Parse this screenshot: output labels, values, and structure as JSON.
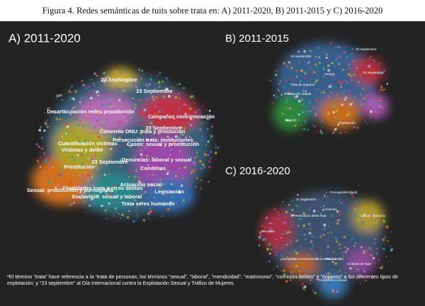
{
  "title": "Figura 4. Redes semánticas de tuits sobre trata en: A) 2011-2020, B) 2011-2015 y C) 2016-2020",
  "panels": [
    {
      "heading": "A) 2011-2020",
      "labels": [
        "23 Septiembre",
        "23 Septiembre",
        "Desarticulación redes prostitución",
        "Campañas concienciación",
        "23 Septiembre",
        "Convenio ONU: trata y prostución",
        "Cuantificación víctimas",
        "Persecución trata: instituciones",
        "Casos: sexual y prostitución",
        "Víctimas y delito",
        "Denuncias: laboral y sexual",
        "23 Septiembre",
        "Prostitución",
        "Condenas",
        "Actuación social",
        "Finalidades trata y otros delitos",
        "Sexual: prostitución y pornografía",
        "Legislación",
        "Esclavitud: sexual y laboral",
        "Trata seres humanos"
      ]
    },
    {
      "heading": "B) 2011-2015",
      "labels": [
        "23 Septiembre",
        "23 Septiembre",
        "Sexual",
        "23 Septiembre",
        "Trata de órganos",
        "Prostitución infantil",
        "Laboral",
        "Prostitución"
      ]
    },
    {
      "heading": "C) 2016-2020",
      "labels": [
        "Pornografía infantil",
        "23 Septiembre",
        "Víctimas",
        "Laboral: denuncia",
        "Persecución delito trata",
        "Denuncia",
        "Campañas concienciación prostitución",
        "Otros delitos",
        "Víctimas de trata",
        "Prostitución y sexual"
      ]
    }
  ],
  "footnote": "*El término “trata” hace referencia a la “trata de personas; los términos “sexual”, “laboral”, “mendicidad”, “matrimonio”, “comisión delitos” y “órganos” a los diferentes tipos de explotación; y “23 septiembre” al Día Internacional contra la Explotación Sexual y Tráfico de Mujeres."
}
